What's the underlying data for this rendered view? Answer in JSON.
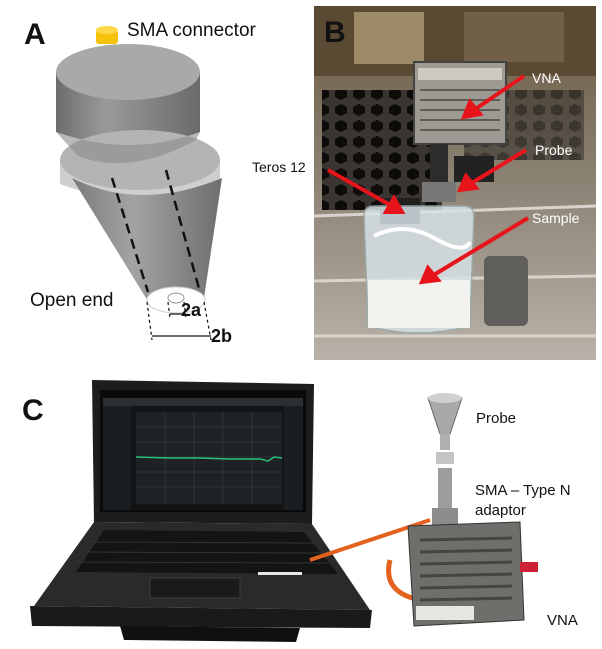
{
  "panels": {
    "a": {
      "letter": "A",
      "connector_label": "SMA connector",
      "open_end_label": "Open end",
      "dim_inner": "2a",
      "dim_outer": "2b"
    },
    "b": {
      "letter": "B",
      "labels": {
        "vna": "VNA",
        "probe": "Probe",
        "teros": "Teros 12",
        "sample": "Sample"
      }
    },
    "c": {
      "letter": "C",
      "labels": {
        "probe": "Probe",
        "adaptor_line1": "SMA – Type N",
        "adaptor_line2": "adaptor",
        "vna": "VNA"
      }
    }
  },
  "colors": {
    "arrow": "#e8141b",
    "probe_body": "#8e8e8e",
    "probe_flange": "#b4b4b4",
    "connector": "#f4c20d",
    "cable": "#e4611e"
  }
}
